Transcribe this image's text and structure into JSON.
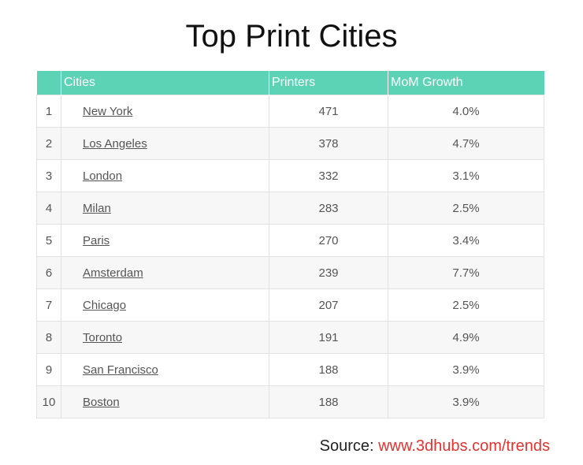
{
  "title": "Top Print Cities",
  "table": {
    "headers": [
      "",
      "Cities",
      "Printers",
      "MoM Growth"
    ],
    "rows": [
      {
        "rank": "1",
        "city": "New York",
        "printers": "471",
        "growth": "4.0%"
      },
      {
        "rank": "2",
        "city": "Los Angeles",
        "printers": "378",
        "growth": "4.7%"
      },
      {
        "rank": "3",
        "city": "London",
        "printers": "332",
        "growth": "3.1%"
      },
      {
        "rank": "4",
        "city": "Milan",
        "printers": "283",
        "growth": "2.5%"
      },
      {
        "rank": "5",
        "city": "Paris",
        "printers": "270",
        "growth": "3.4%"
      },
      {
        "rank": "6",
        "city": "Amsterdam",
        "printers": "239",
        "growth": "7.7%"
      },
      {
        "rank": "7",
        "city": "Chicago",
        "printers": "207",
        "growth": "2.5%"
      },
      {
        "rank": "8",
        "city": "Toronto",
        "printers": "191",
        "growth": "4.9%"
      },
      {
        "rank": "9",
        "city": "San Francisco",
        "printers": "188",
        "growth": "3.9%"
      },
      {
        "rank": "10",
        "city": "Boston",
        "printers": "188",
        "growth": "3.9%"
      }
    ]
  },
  "source": {
    "label": "Source:",
    "link_text": "www.3dhubs.com/trends"
  },
  "colors": {
    "header_bg": "#5dd3b6",
    "link_red": "#e2332f"
  }
}
